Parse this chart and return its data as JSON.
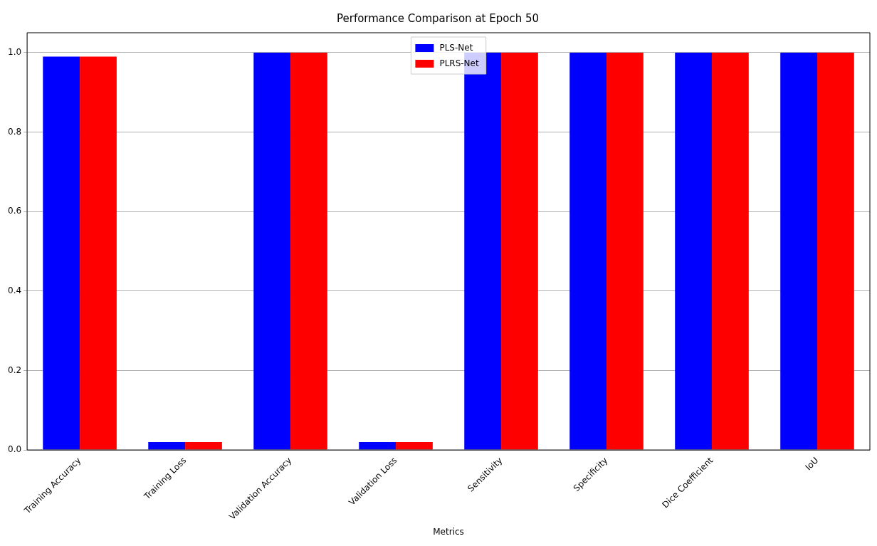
{
  "chart_data": {
    "type": "bar",
    "title": "Performance Comparison at Epoch 50",
    "xlabel": "Metrics",
    "categories": [
      "Training Accuracy",
      "Training Loss",
      "Validation Accuracy",
      "Validation Loss",
      "Sensitivity",
      "Specificity",
      "Dice Coefficient",
      "IoU"
    ],
    "series": [
      {
        "name": "PLS-Net",
        "color": "#0000ff",
        "values": [
          0.99,
          0.02,
          1.0,
          0.02,
          1.0,
          1.0,
          1.0,
          1.0
        ]
      },
      {
        "name": "PLRS-Net",
        "color": "#ff0000",
        "values": [
          0.99,
          0.02,
          1.0,
          0.02,
          1.0,
          1.0,
          1.0,
          1.0
        ]
      }
    ],
    "ylim": [
      0,
      1.05
    ],
    "yticks": [
      {
        "value": 0,
        "label": "0.0"
      },
      0.2,
      0.4,
      0.6,
      0.8,
      {
        "value": 1,
        "label": "1.0"
      }
    ],
    "grid": "y",
    "legend": "top"
  }
}
